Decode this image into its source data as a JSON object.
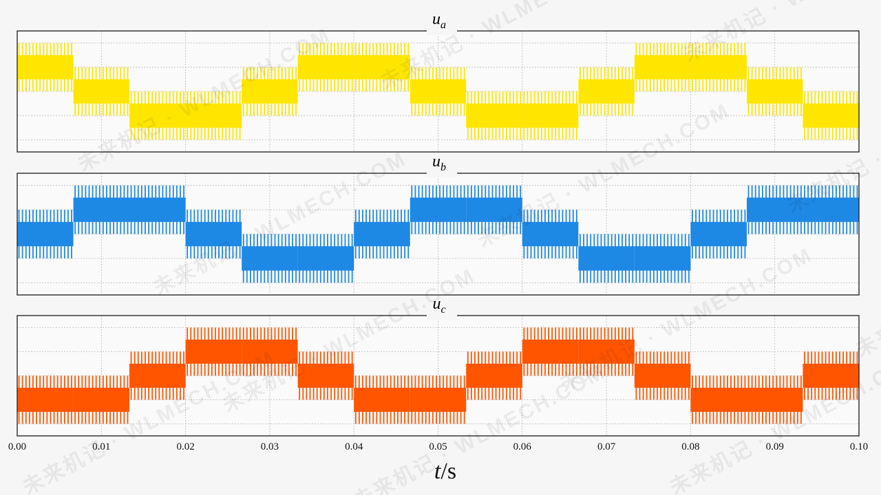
{
  "chart_data": {
    "type": "line",
    "xlabel_var": "t",
    "xlabel_unit": "/s",
    "xlim": [
      0.0,
      0.1
    ],
    "x_ticks": [
      "0.00",
      "0.01",
      "0.02",
      "0.03",
      "0.04",
      "0.05",
      "0.06",
      "0.07",
      "0.08",
      "0.09",
      "0.10"
    ],
    "x_tick_values": [
      0.0,
      0.01,
      0.02,
      0.03,
      0.04,
      0.05,
      0.06,
      0.07,
      0.08,
      0.09,
      0.1
    ],
    "ylim": [
      -2.5,
      2.5
    ],
    "y_gridlines": [
      -2,
      -1,
      0,
      1,
      2
    ],
    "grid": true,
    "fundamental_period_s": 0.04,
    "levels": [
      -2,
      -1,
      0,
      1,
      2
    ],
    "series": [
      {
        "base": "u",
        "sub": "a",
        "color": "#ffe600",
        "step_times": [
          0.00667,
          0.01333,
          0.02,
          0.02667,
          0.03333,
          0.04,
          0.04667,
          0.05333,
          0.06,
          0.06667,
          0.07333,
          0.08,
          0.08667,
          0.09333,
          0.1
        ],
        "upper_levels": [
          2,
          1,
          0,
          0,
          1,
          2,
          2,
          1,
          0,
          0,
          1,
          2,
          2,
          1,
          0
        ],
        "lower_levels": [
          0,
          -1,
          -2,
          -2,
          -1,
          0,
          0,
          -1,
          -2,
          -2,
          -1,
          0,
          0,
          -1,
          -2
        ]
      },
      {
        "base": "u",
        "sub": "b",
        "color": "#1e88e5",
        "step_times": [
          0.00667,
          0.01333,
          0.02,
          0.02667,
          0.03333,
          0.04,
          0.04667,
          0.05333,
          0.06,
          0.06667,
          0.07333,
          0.08,
          0.08667,
          0.09333,
          0.1
        ],
        "upper_levels": [
          1,
          2,
          2,
          1,
          0,
          0,
          1,
          2,
          2,
          1,
          0,
          0,
          1,
          2,
          2
        ],
        "lower_levels": [
          -1,
          0,
          0,
          -1,
          -2,
          -2,
          -1,
          0,
          0,
          -1,
          -2,
          -2,
          -1,
          0,
          0
        ]
      },
      {
        "base": "u",
        "sub": "c",
        "color": "#ff5500",
        "step_times": [
          0.00667,
          0.01333,
          0.02,
          0.02667,
          0.03333,
          0.04,
          0.04667,
          0.05333,
          0.06,
          0.06667,
          0.07333,
          0.08,
          0.08667,
          0.09333,
          0.1
        ],
        "upper_levels": [
          0,
          0,
          1,
          2,
          2,
          1,
          0,
          0,
          1,
          2,
          2,
          1,
          0,
          0,
          1
        ],
        "lower_levels": [
          -2,
          -2,
          -1,
          0,
          0,
          -1,
          -2,
          -2,
          -1,
          0,
          0,
          -1,
          -2,
          -2,
          -1
        ]
      }
    ]
  },
  "watermark": {
    "text_cn": "未来机记",
    "separator": "·",
    "text_en": "WLMECH.COM"
  }
}
